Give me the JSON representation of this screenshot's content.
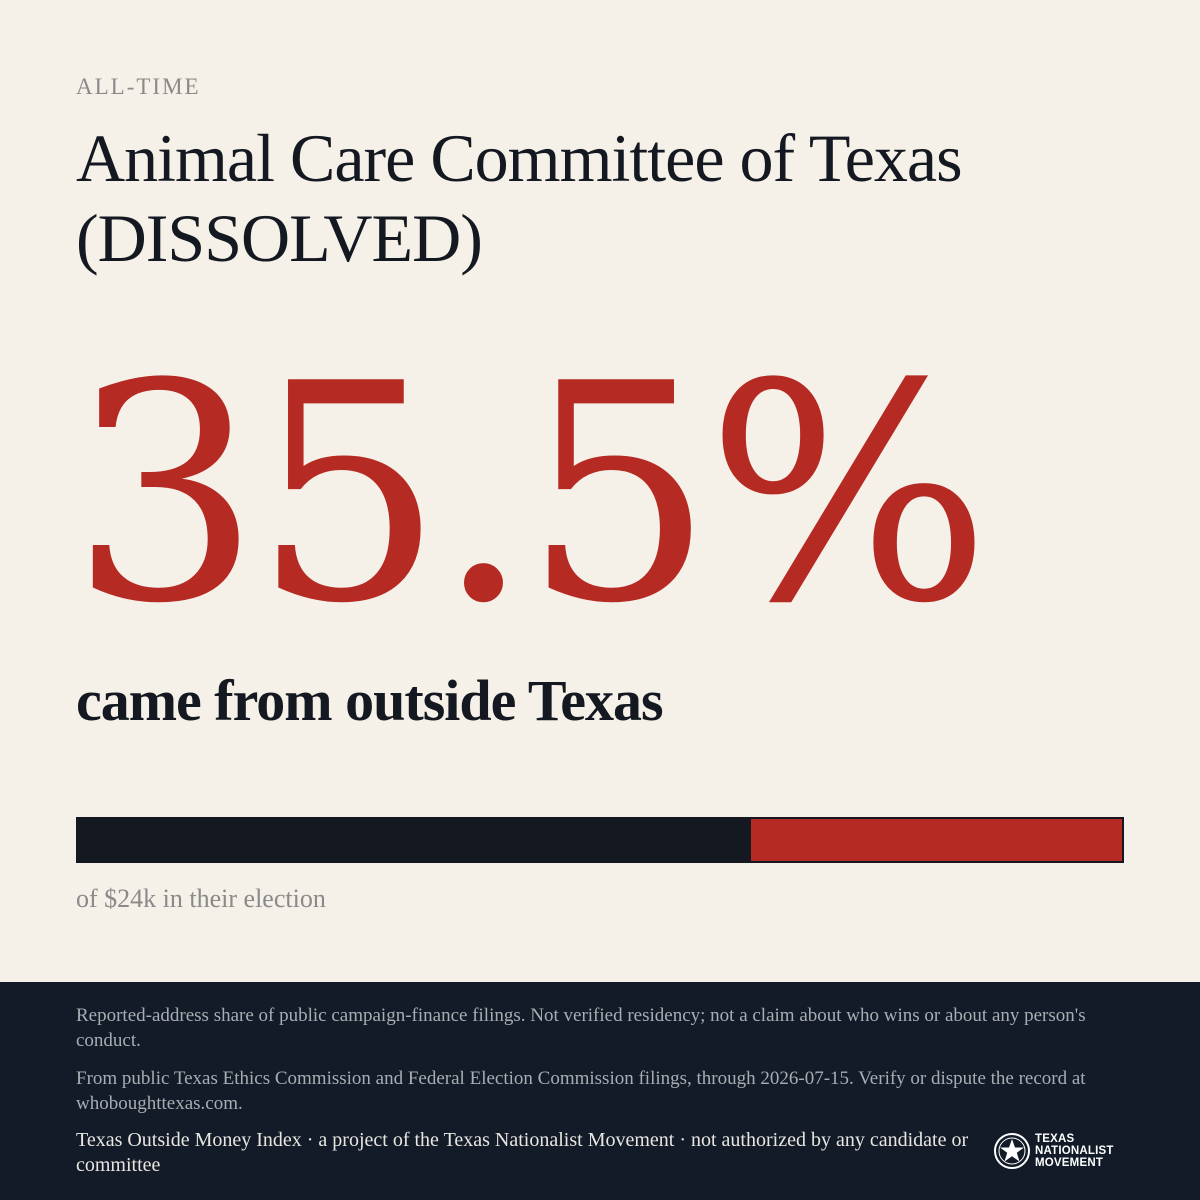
{
  "eyebrow": "ALL-TIME",
  "title_line1": "Animal Care Committee of Texas",
  "title_line2": "(DISSOLVED)",
  "stat": {
    "value_text": "35.5%",
    "outside_fraction": 0.355
  },
  "subhead": "came from outside Texas",
  "bar_caption": "of $24k in their election",
  "colors": {
    "background": "#f5f0e8",
    "accent_red": "#b52a22",
    "ink": "#141820",
    "footer": "#121b27"
  },
  "footer": {
    "disclaimer": "Reported-address share of public campaign-finance filings. Not verified residency; not a claim about who wins or about any person's conduct.",
    "source": "From public Texas Ethics Commission and Federal Election Commission filings, through 2026-07-15. Verify or dispute the record at whoboughttexas.com.",
    "project": "Texas Outside Money Index · a project of the Texas Nationalist Movement · not authorized by any candidate or committee",
    "logo": {
      "icon": "lone-star-seal-icon",
      "line1": "TEXAS",
      "line2": "NATIONALIST",
      "line3": "MOVEMENT"
    }
  }
}
